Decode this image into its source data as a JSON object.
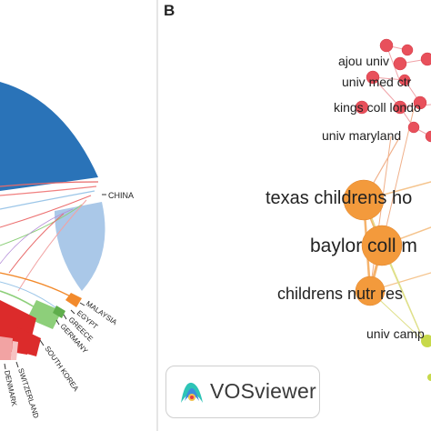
{
  "panel_b_letter": "B",
  "chord": {
    "labels": [
      "CHINA",
      "MALAYSIA",
      "EGYPT",
      "GREECE",
      "GERMANY",
      "SOUTH KOREA",
      "SWITZERLAND",
      "DENMARK"
    ],
    "colors": {
      "blue": "#2a73b8",
      "light_blue": "#aac8e8",
      "orange": "#f28a2c",
      "green": "#8dcf7a",
      "red": "#dc2b2b",
      "pink": "#f2a3a3"
    }
  },
  "network": {
    "nodes": [
      {
        "label": "ajou univ",
        "cluster": "red"
      },
      {
        "label": "univ med ctr",
        "cluster": "red"
      },
      {
        "label": "kings coll londo",
        "cluster": "red"
      },
      {
        "label": "univ maryland",
        "cluster": "red"
      },
      {
        "label": "texas childrens ho",
        "cluster": "orange"
      },
      {
        "label": "baylor coll m",
        "cluster": "orange"
      },
      {
        "label": "childrens nutr res",
        "cluster": "orange"
      },
      {
        "label": "univ camp",
        "cluster": "yellow"
      }
    ],
    "colors": {
      "red": "#e8505b",
      "orange": "#f39a3c",
      "yellow": "#c7d94a"
    }
  },
  "badge": {
    "text": "VOSviewer"
  }
}
